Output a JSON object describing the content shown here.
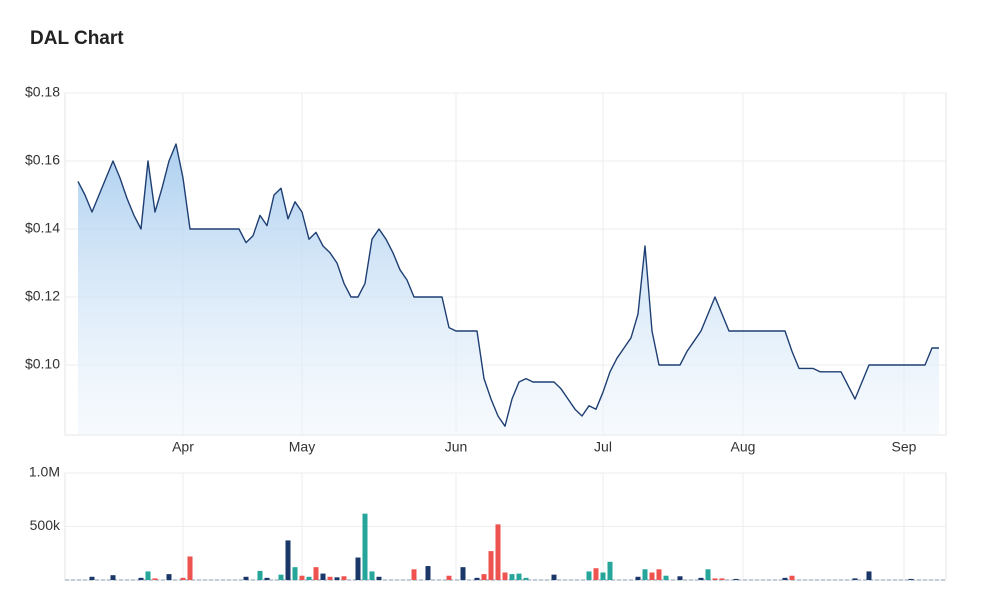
{
  "title": "DAL Chart",
  "chart_data": [
    {
      "type": "area",
      "categories": [
        null,
        null,
        null,
        null,
        null,
        null,
        null,
        null,
        null,
        null,
        null,
        null,
        null,
        null,
        null,
        "Apr",
        null,
        null,
        null,
        null,
        null,
        null,
        null,
        null,
        null,
        null,
        null,
        null,
        null,
        null,
        null,
        null,
        "May",
        null,
        null,
        null,
        null,
        null,
        null,
        null,
        null,
        null,
        null,
        null,
        null,
        null,
        null,
        null,
        null,
        null,
        null,
        null,
        null,
        null,
        "Jun",
        null,
        null,
        null,
        null,
        null,
        null,
        null,
        null,
        null,
        null,
        null,
        null,
        null,
        null,
        null,
        null,
        null,
        null,
        null,
        null,
        "Jul",
        null,
        null,
        null,
        null,
        null,
        null,
        null,
        null,
        null,
        null,
        null,
        null,
        null,
        null,
        null,
        null,
        null,
        null,
        null,
        "Aug",
        null,
        null,
        null,
        null,
        null,
        null,
        null,
        null,
        null,
        null,
        null,
        null,
        null,
        null,
        null,
        null,
        null,
        null,
        null,
        null,
        null,
        null,
        "Sep",
        null,
        null,
        null,
        null,
        null
      ],
      "values": [
        0.154,
        0.15,
        0.145,
        0.15,
        0.155,
        0.16,
        0.155,
        0.149,
        0.144,
        0.14,
        0.16,
        0.145,
        0.152,
        0.16,
        0.165,
        0.155,
        0.14,
        0.14,
        0.14,
        0.14,
        0.14,
        0.14,
        0.14,
        0.14,
        0.136,
        0.138,
        0.144,
        0.141,
        0.15,
        0.152,
        0.143,
        0.148,
        0.145,
        0.137,
        0.139,
        0.135,
        0.133,
        0.13,
        0.124,
        0.12,
        0.12,
        0.124,
        0.137,
        0.14,
        0.137,
        0.133,
        0.128,
        0.125,
        0.12,
        0.12,
        0.12,
        0.12,
        0.12,
        0.111,
        0.11,
        0.11,
        0.11,
        0.11,
        0.096,
        0.09,
        0.085,
        0.082,
        0.09,
        0.095,
        0.096,
        0.095,
        0.095,
        0.095,
        0.095,
        0.093,
        0.09,
        0.087,
        0.085,
        0.088,
        0.087,
        0.092,
        0.098,
        0.102,
        0.105,
        0.108,
        0.115,
        0.135,
        0.11,
        0.1,
        0.1,
        0.1,
        0.1,
        0.104,
        0.107,
        0.11,
        0.115,
        0.12,
        0.115,
        0.11,
        0.11,
        0.11,
        0.11,
        0.11,
        0.11,
        0.11,
        0.11,
        0.11,
        0.104,
        0.099,
        0.099,
        0.099,
        0.098,
        0.098,
        0.098,
        0.098,
        0.094,
        0.09,
        0.095,
        0.1,
        0.1,
        0.1,
        0.1,
        0.1,
        0.1,
        0.1,
        0.1,
        0.1,
        0.105,
        0.105
      ],
      "color": "#1f3f73",
      "ylim": [
        0.08,
        0.18
      ],
      "yticks": [
        {
          "value": 0.1,
          "label": "$0.10"
        },
        {
          "value": 0.12,
          "label": "$0.12"
        },
        {
          "value": 0.14,
          "label": "$0.14"
        },
        {
          "value": 0.16,
          "label": "$0.16"
        },
        {
          "value": 0.18,
          "label": "$0.18"
        }
      ],
      "grid": true
    },
    {
      "type": "bar",
      "values": [
        0,
        0,
        30000,
        0,
        0,
        45000,
        0,
        0,
        0,
        20000,
        80000,
        15000,
        0,
        55000,
        0,
        20000,
        220000,
        0,
        0,
        0,
        0,
        0,
        0,
        0,
        30000,
        0,
        85000,
        20000,
        0,
        50000,
        370000,
        120000,
        40000,
        30000,
        120000,
        60000,
        30000,
        25000,
        35000,
        0,
        210000,
        620000,
        80000,
        30000,
        0,
        0,
        0,
        0,
        100000,
        0,
        130000,
        0,
        0,
        40000,
        0,
        120000,
        0,
        20000,
        55000,
        270000,
        520000,
        70000,
        55000,
        60000,
        20000,
        0,
        0,
        0,
        50000,
        0,
        0,
        0,
        0,
        80000,
        110000,
        70000,
        170000,
        0,
        0,
        0,
        30000,
        100000,
        70000,
        100000,
        40000,
        0,
        35000,
        0,
        0,
        20000,
        100000,
        15000,
        15000,
        0,
        10000,
        0,
        0,
        0,
        0,
        0,
        0,
        20000,
        40000,
        0,
        0,
        0,
        0,
        0,
        0,
        0,
        0,
        15000,
        0,
        80000,
        0,
        0,
        0,
        0,
        0,
        10000,
        0,
        0,
        0,
        0
      ],
      "colors": [
        "#1a3768",
        "#1a3768",
        "#1a3768",
        "#1a3768",
        "#1a3768",
        "#1a3768",
        "#1a3768",
        "#1a3768",
        "#1a3768",
        "#1a3768",
        "#26a69a",
        "#ef5350",
        "#1a3768",
        "#1a3768",
        "#1a3768",
        "#ef5350",
        "#ef5350",
        "#1a3768",
        "#1a3768",
        "#1a3768",
        "#1a3768",
        "#1a3768",
        "#1a3768",
        "#1a3768",
        "#1a3768",
        "#1a3768",
        "#26a69a",
        "#1a3768",
        "#1a3768",
        "#26a69a",
        "#1a3768",
        "#26a69a",
        "#ef5350",
        "#26a69a",
        "#ef5350",
        "#1a3768",
        "#ef5350",
        "#1a3768",
        "#ef5350",
        "#1a3768",
        "#1a3768",
        "#26a69a",
        "#26a69a",
        "#1a3768",
        "#1a3768",
        "#1a3768",
        "#1a3768",
        "#1a3768",
        "#ef5350",
        "#1a3768",
        "#1a3768",
        "#1a3768",
        "#1a3768",
        "#ef5350",
        "#1a3768",
        "#1a3768",
        "#1a3768",
        "#1a3768",
        "#ef5350",
        "#ef5350",
        "#ef5350",
        "#ef5350",
        "#26a69a",
        "#26a69a",
        "#26a69a",
        "#1a3768",
        "#1a3768",
        "#1a3768",
        "#1a3768",
        "#1a3768",
        "#1a3768",
        "#1a3768",
        "#1a3768",
        "#26a69a",
        "#ef5350",
        "#26a69a",
        "#26a69a",
        "#1a3768",
        "#1a3768",
        "#1a3768",
        "#1a3768",
        "#26a69a",
        "#ef5350",
        "#ef5350",
        "#26a69a",
        "#1a3768",
        "#1a3768",
        "#1a3768",
        "#1a3768",
        "#1a3768",
        "#26a69a",
        "#ef5350",
        "#ef5350",
        "#1a3768",
        "#1a3768",
        "#1a3768",
        "#1a3768",
        "#1a3768",
        "#1a3768",
        "#1a3768",
        "#1a3768",
        "#1a3768",
        "#ef5350",
        "#1a3768",
        "#1a3768",
        "#1a3768",
        "#1a3768",
        "#1a3768",
        "#1a3768",
        "#1a3768",
        "#1a3768",
        "#1a3768",
        "#1a3768",
        "#1a3768",
        "#1a3768",
        "#1a3768",
        "#1a3768",
        "#1a3768",
        "#1a3768",
        "#1a3768",
        "#1a3768",
        "#1a3768",
        "#1a3768",
        "#1a3768"
      ],
      "ylim": [
        0,
        1000000
      ],
      "yticks": [
        {
          "value": 500000,
          "label": "500k"
        },
        {
          "value": 1000000,
          "label": "1.0M"
        }
      ],
      "grid": true
    }
  ]
}
